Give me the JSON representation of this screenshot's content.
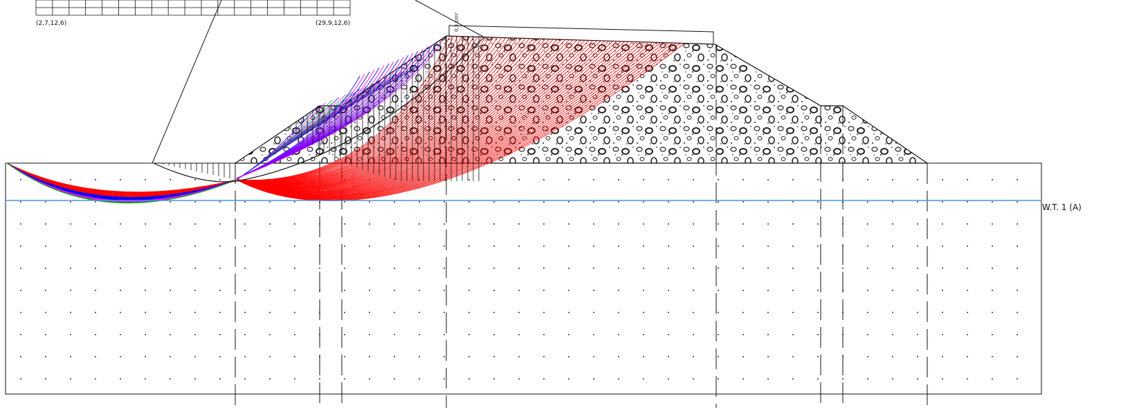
{
  "labels": {
    "grid_left": "(2,7,12,6)",
    "grid_right": "(29,9,12,6)",
    "load": "0,3 t/m²",
    "water_table": "W.T. 1 (A)"
  },
  "colors": {
    "slip_primary": "#ff0000",
    "slip_secondary": "#0000ff",
    "slip_tertiary": "#ff00ff",
    "slip_other": "#00aa00",
    "water_table": "#4a90e2",
    "outline": "#111111"
  }
}
